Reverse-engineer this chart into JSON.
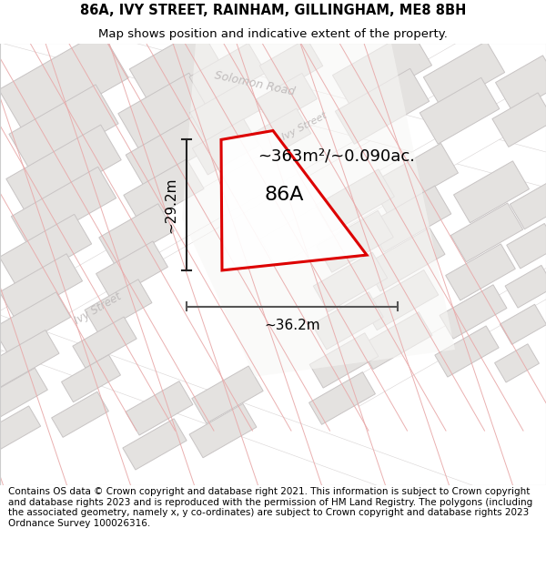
{
  "title": "86A, IVY STREET, RAINHAM, GILLINGHAM, ME8 8BH",
  "subtitle": "Map shows position and indicative extent of the property.",
  "footer": "Contains OS data © Crown copyright and database right 2021. This information is subject to Crown copyright and database rights 2023 and is reproduced with the permission of HM Land Registry. The polygons (including the associated geometry, namely x, y co-ordinates) are subject to Crown copyright and database rights 2023 Ordnance Survey 100026316.",
  "area_label": "~363m²/~0.090ac.",
  "plot_label": "86A",
  "dim_width": "~36.2m",
  "dim_height": "~29.2m",
  "map_bg": "#f0eeee",
  "road_color": "#ffffff",
  "building_fill": "#e0dede",
  "building_stroke": "#c8c5c5",
  "pink_line_color": "#e8a8a8",
  "red_poly_color": "#dd0000",
  "street_label_color": "#c0bcbc",
  "title_fontsize": 10.5,
  "subtitle_fontsize": 9.5,
  "footer_fontsize": 7.5,
  "area_fontsize": 13,
  "label_fontsize": 16,
  "dim_fontsize": 11
}
